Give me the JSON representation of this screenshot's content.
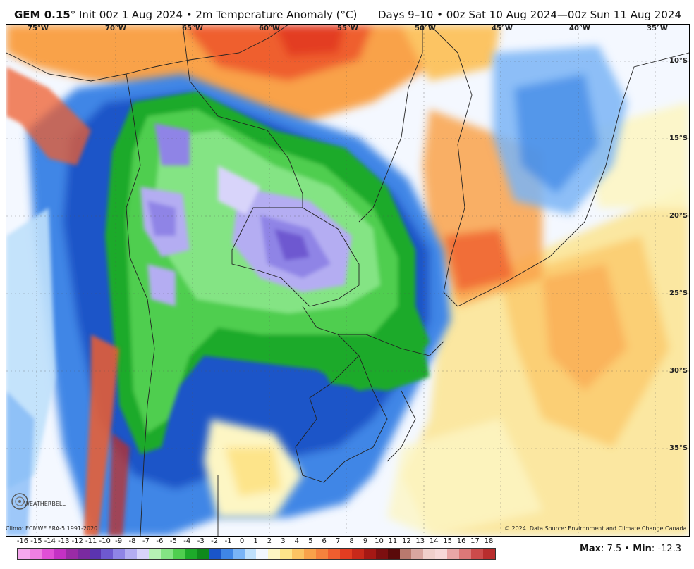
{
  "header": {
    "model": "GEM 0.15",
    "deg": "°",
    "subtitle": " Init 00z 1 Aug 2024 • 2m Temperature Anomaly (°C)",
    "valid": "Days 9–10 • 00z Sat 10 Aug 2024—00z Sun 11 Aug 2024"
  },
  "map": {
    "lon_labels": [
      "75°W",
      "70°W",
      "65°W",
      "60°W",
      "55°W",
      "50°W",
      "45°W",
      "40°W",
      "35°W"
    ],
    "lat_labels": [
      "10°S",
      "15°S",
      "20°S",
      "25°S",
      "30°S",
      "35°S"
    ],
    "logo_text": "WEATHERBELL"
  },
  "footer": {
    "climo": "Climo: ECMWF ERA-5 1991-2020",
    "credit": "© 2024. Data Source: Environment and Climate Change Canada."
  },
  "legend": {
    "ticks": [
      "-16",
      "-15",
      "-14",
      "-13",
      "-12",
      "-11",
      "-10",
      "-9",
      "-8",
      "-7",
      "-6",
      "-5",
      "-4",
      "-3",
      "-2",
      "-1",
      "0",
      "1",
      "2",
      "3",
      "4",
      "5",
      "6",
      "7",
      "8",
      "9",
      "10",
      "11",
      "12",
      "13",
      "14",
      "15",
      "16",
      "17",
      "18"
    ],
    "colors": [
      "#f6a8ee",
      "#ee7fe2",
      "#e04fd6",
      "#c431c4",
      "#9a2ba6",
      "#7a2aa0",
      "#5b34b0",
      "#6e59d0",
      "#8f84e6",
      "#b4adf2",
      "#d8d4fa",
      "#b6f2b4",
      "#84e484",
      "#4fce4f",
      "#1daa2a",
      "#0f8a1c",
      "#1a55c8",
      "#3f86e6",
      "#79b4f6",
      "#bfe0fb",
      "#f2f7fd",
      "#fdf6c4",
      "#fde48a",
      "#fcc463",
      "#f9a24a",
      "#f5823d",
      "#ef5e2f",
      "#e33d21",
      "#c8291a",
      "#a51814",
      "#7d0f10",
      "#5a0a0a",
      "#b8796e",
      "#d9a6a0",
      "#f0cfcb",
      "#f7d8d8",
      "#e9a6a6",
      "#dc7878",
      "#cc4b4b",
      "#b82d2d"
    ],
    "max_label": "Max",
    "max_value": ": 7.5 • ",
    "min_label": "Min",
    "min_value": ": -12.3"
  }
}
